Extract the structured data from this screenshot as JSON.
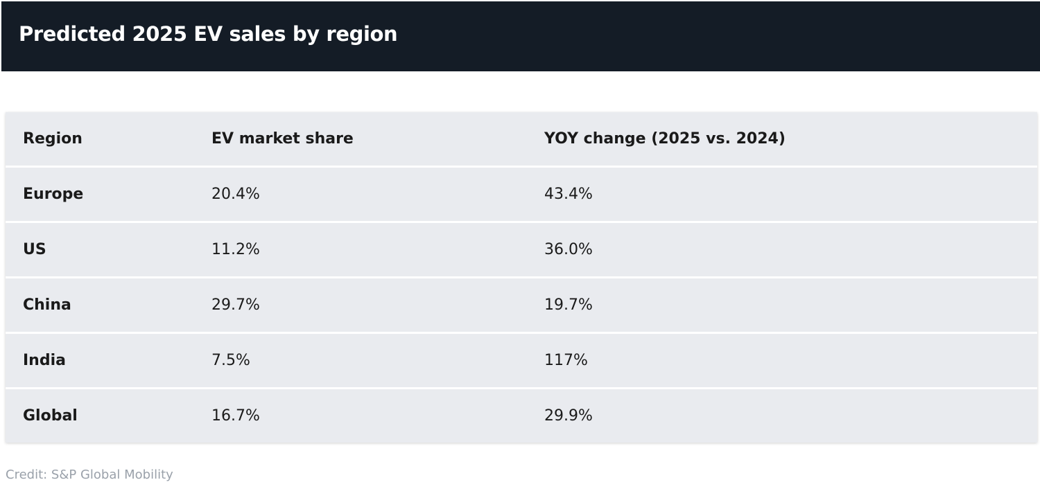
{
  "title": "Predicted 2025 EV sales by region",
  "credit": "Credit: S&P Global Mobility",
  "chart_data": {
    "type": "table",
    "title": "Predicted 2025 EV sales by region",
    "columns": [
      "Region",
      "EV market share",
      "YOY change (2025 vs. 2024)"
    ],
    "rows": [
      [
        "Europe",
        "20.4%",
        "43.4%"
      ],
      [
        "US",
        "11.2%",
        "36.0%"
      ],
      [
        "China",
        "29.7%",
        "19.7%"
      ],
      [
        "India",
        "7.5%",
        "117%"
      ],
      [
        "Global",
        "16.7%",
        "29.9%"
      ]
    ]
  },
  "colors": {
    "title_bar": "#141c26",
    "title_text": "#ffffff",
    "row_background": "#e9ebef",
    "cell_text": "#1a1a1a",
    "credit_text": "#9aa1aa"
  }
}
